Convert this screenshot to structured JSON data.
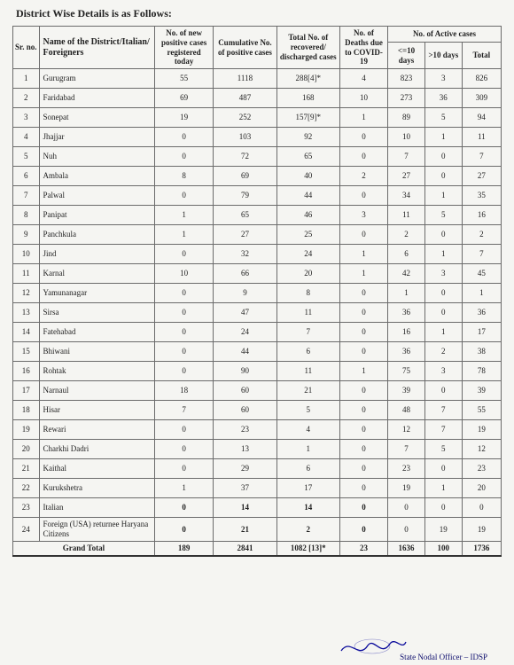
{
  "heading": "District Wise Details is as Follows:",
  "columns": {
    "sr": "Sr. no.",
    "name": "Name of the District/Italian/ Foreigners",
    "new": "No. of new positive cases registered today",
    "cum": "Cumulative No. of positive cases",
    "rec": "Total No. of recovered/ discharged cases",
    "death": "No. of Deaths due to COVID-19",
    "active_group": "No. of Active cases",
    "le10": "<=10 days",
    "gt10": ">10 days",
    "tot": "Total"
  },
  "rows": [
    {
      "sr": "1",
      "name": "Gurugram",
      "new": "55",
      "cum": "1118",
      "rec": "288[4]*",
      "death": "4",
      "le10": "823",
      "gt10": "3",
      "tot": "826"
    },
    {
      "sr": "2",
      "name": "Faridabad",
      "new": "69",
      "cum": "487",
      "rec": "168",
      "death": "10",
      "le10": "273",
      "gt10": "36",
      "tot": "309"
    },
    {
      "sr": "3",
      "name": "Sonepat",
      "new": "19",
      "cum": "252",
      "rec": "157[9]*",
      "death": "1",
      "le10": "89",
      "gt10": "5",
      "tot": "94"
    },
    {
      "sr": "4",
      "name": "Jhajjar",
      "new": "0",
      "cum": "103",
      "rec": "92",
      "death": "0",
      "le10": "10",
      "gt10": "1",
      "tot": "11"
    },
    {
      "sr": "5",
      "name": "Nuh",
      "new": "0",
      "cum": "72",
      "rec": "65",
      "death": "0",
      "le10": "7",
      "gt10": "0",
      "tot": "7"
    },
    {
      "sr": "6",
      "name": "Ambala",
      "new": "8",
      "cum": "69",
      "rec": "40",
      "death": "2",
      "le10": "27",
      "gt10": "0",
      "tot": "27"
    },
    {
      "sr": "7",
      "name": "Palwal",
      "new": "0",
      "cum": "79",
      "rec": "44",
      "death": "0",
      "le10": "34",
      "gt10": "1",
      "tot": "35"
    },
    {
      "sr": "8",
      "name": "Panipat",
      "new": "1",
      "cum": "65",
      "rec": "46",
      "death": "3",
      "le10": "11",
      "gt10": "5",
      "tot": "16"
    },
    {
      "sr": "9",
      "name": "Panchkula",
      "new": "1",
      "cum": "27",
      "rec": "25",
      "death": "0",
      "le10": "2",
      "gt10": "0",
      "tot": "2"
    },
    {
      "sr": "10",
      "name": "Jind",
      "new": "0",
      "cum": "32",
      "rec": "24",
      "death": "1",
      "le10": "6",
      "gt10": "1",
      "tot": "7"
    },
    {
      "sr": "11",
      "name": "Karnal",
      "new": "10",
      "cum": "66",
      "rec": "20",
      "death": "1",
      "le10": "42",
      "gt10": "3",
      "tot": "45"
    },
    {
      "sr": "12",
      "name": "Yamunanagar",
      "new": "0",
      "cum": "9",
      "rec": "8",
      "death": "0",
      "le10": "1",
      "gt10": "0",
      "tot": "1"
    },
    {
      "sr": "13",
      "name": "Sirsa",
      "new": "0",
      "cum": "47",
      "rec": "11",
      "death": "0",
      "le10": "36",
      "gt10": "0",
      "tot": "36"
    },
    {
      "sr": "14",
      "name": "Fatehabad",
      "new": "0",
      "cum": "24",
      "rec": "7",
      "death": "0",
      "le10": "16",
      "gt10": "1",
      "tot": "17"
    },
    {
      "sr": "15",
      "name": "Bhiwani",
      "new": "0",
      "cum": "44",
      "rec": "6",
      "death": "0",
      "le10": "36",
      "gt10": "2",
      "tot": "38"
    },
    {
      "sr": "16",
      "name": "Rohtak",
      "new": "0",
      "cum": "90",
      "rec": "11",
      "death": "1",
      "le10": "75",
      "gt10": "3",
      "tot": "78"
    },
    {
      "sr": "17",
      "name": "Narnaul",
      "new": "18",
      "cum": "60",
      "rec": "21",
      "death": "0",
      "le10": "39",
      "gt10": "0",
      "tot": "39"
    },
    {
      "sr": "18",
      "name": "Hisar",
      "new": "7",
      "cum": "60",
      "rec": "5",
      "death": "0",
      "le10": "48",
      "gt10": "7",
      "tot": "55"
    },
    {
      "sr": "19",
      "name": "Rewari",
      "new": "0",
      "cum": "23",
      "rec": "4",
      "death": "0",
      "le10": "12",
      "gt10": "7",
      "tot": "19"
    },
    {
      "sr": "20",
      "name": "Charkhi Dadri",
      "new": "0",
      "cum": "13",
      "rec": "1",
      "death": "0",
      "le10": "7",
      "gt10": "5",
      "tot": "12"
    },
    {
      "sr": "21",
      "name": "Kaithal",
      "new": "0",
      "cum": "29",
      "rec": "6",
      "death": "0",
      "le10": "23",
      "gt10": "0",
      "tot": "23"
    },
    {
      "sr": "22",
      "name": "Kurukshetra",
      "new": "1",
      "cum": "37",
      "rec": "17",
      "death": "0",
      "le10": "19",
      "gt10": "1",
      "tot": "20"
    },
    {
      "sr": "23",
      "name": "Italian",
      "new": "0",
      "cum": "14",
      "rec": "14",
      "death": "0",
      "le10": "0",
      "gt10": "0",
      "tot": "0",
      "bold": true
    },
    {
      "sr": "24",
      "name": "Foreign (USA) returnee Haryana Citizens",
      "new": "0",
      "cum": "21",
      "rec": "2",
      "death": "0",
      "le10": "0",
      "gt10": "19",
      "tot": "19",
      "bold": true
    }
  ],
  "grand": {
    "label": "Grand Total",
    "new": "189",
    "cum": "2841",
    "rec": "1082 [13]*",
    "death": "23",
    "le10": "1636",
    "gt10": "100",
    "tot": "1736"
  },
  "footer": "State Nodal Officer – IDSP",
  "style": {
    "background": "#f5f5f2",
    "text_color": "#222",
    "border_color": "#6b6b6b",
    "heading_fontsize": "12",
    "cell_fontsize": "9",
    "sig_color": "#0a0a6b"
  }
}
